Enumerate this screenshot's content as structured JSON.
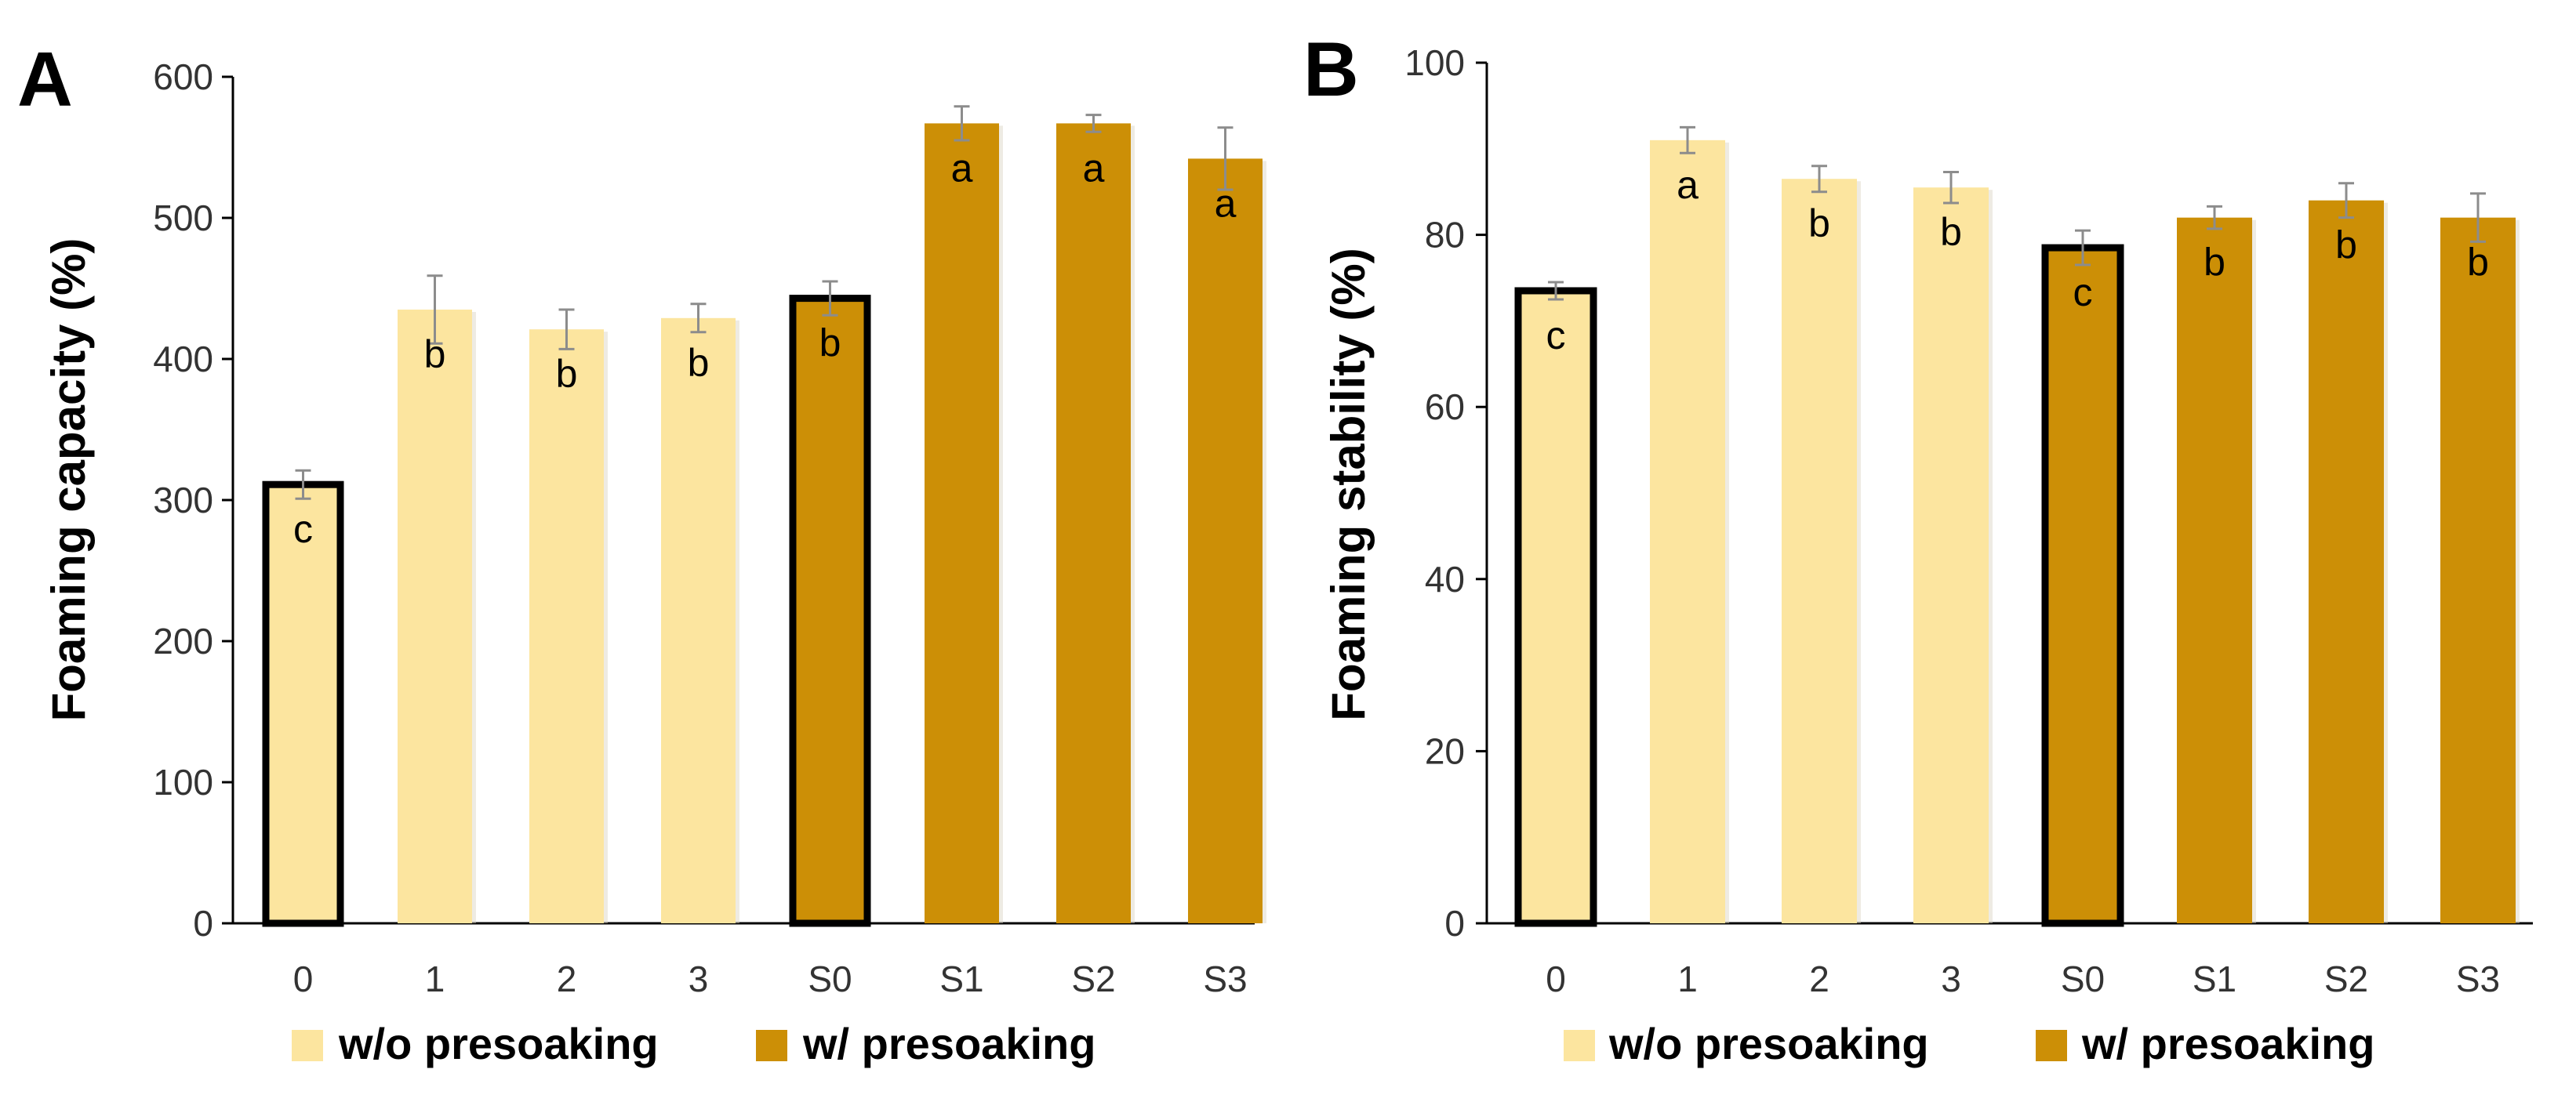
{
  "chart_data": [
    {
      "type": "bar",
      "panel_label": "A",
      "categories": [
        "0",
        "1",
        "2",
        "3",
        "S0",
        "S1",
        "S2",
        "S3"
      ],
      "values": [
        311,
        435,
        421,
        429,
        443,
        567,
        567,
        542
      ],
      "errors": [
        10,
        24,
        14,
        10,
        12,
        12,
        6,
        22
      ],
      "significance": [
        "c",
        "b",
        "b",
        "b",
        "b",
        "a",
        "a",
        "a"
      ],
      "groups": [
        "w/o presoaking",
        "w/o presoaking",
        "w/o presoaking",
        "w/o presoaking",
        "w/ presoaking",
        "w/ presoaking",
        "w/ presoaking",
        "w/ presoaking"
      ],
      "highlighted": [
        true,
        false,
        false,
        false,
        true,
        false,
        false,
        false
      ],
      "ylabel": "Foaming capacity (%)",
      "xlabel": "",
      "ylim": [
        0,
        600
      ],
      "yticks": [
        "0",
        "100",
        "200",
        "300",
        "400",
        "500",
        "600"
      ],
      "legend": [
        "w/o presoaking",
        "w/ presoaking"
      ]
    },
    {
      "type": "bar",
      "panel_label": "B",
      "categories": [
        "0",
        "1",
        "2",
        "3",
        "S0",
        "S1",
        "S2",
        "S3"
      ],
      "values": [
        73.5,
        91,
        86.5,
        85.5,
        78.5,
        82,
        84,
        82
      ],
      "errors": [
        1,
        1.5,
        1.5,
        1.8,
        2,
        1.3,
        2,
        2.8
      ],
      "significance": [
        "c",
        "a",
        "b",
        "b",
        "c",
        "b",
        "b",
        "b"
      ],
      "groups": [
        "w/o presoaking",
        "w/o presoaking",
        "w/o presoaking",
        "w/o presoaking",
        "w/ presoaking",
        "w/ presoaking",
        "w/ presoaking",
        "w/ presoaking"
      ],
      "highlighted": [
        true,
        false,
        false,
        false,
        true,
        false,
        false,
        false
      ],
      "ylabel": "Foaming stability (%)",
      "xlabel": "",
      "ylim": [
        0,
        100
      ],
      "yticks": [
        "0",
        "20",
        "40",
        "60",
        "80",
        "100"
      ],
      "legend": [
        "w/o presoaking",
        "w/ presoaking"
      ]
    }
  ],
  "colors": {
    "light": "#FCE59F",
    "dark": "#CC8F06",
    "outline": "#000000",
    "error": "#8C8C8C",
    "axis": "#000000"
  }
}
